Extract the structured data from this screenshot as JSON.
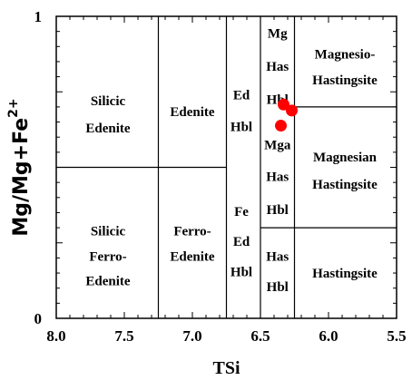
{
  "chart_data": {
    "type": "scatter",
    "title": "",
    "xlabel": "TSi",
    "ylabel": "Mg/Mg+Fe",
    "ylabel_sup": "2+",
    "xlim": [
      8.0,
      5.5
    ],
    "ylim": [
      0,
      1
    ],
    "x_reversed": true,
    "x_ticks": [
      "8.0",
      "7.5",
      "7.0",
      "6.5",
      "6.0",
      "5.5"
    ],
    "y_ticks": [
      "0",
      "1"
    ],
    "grid": false,
    "marker_color": "#ff0000",
    "divider_x": [
      7.25,
      6.75,
      6.5,
      6.25
    ],
    "divider_y": 0.5,
    "regions": [
      {
        "lines": [
          "Silicic",
          "Edenite"
        ],
        "x": 7.62,
        "y": [
          0.72,
          0.63
        ]
      },
      {
        "lines": [
          "Edenite"
        ],
        "x": 7.0,
        "y": [
          0.685
        ]
      },
      {
        "lines": [
          "Ed",
          "Hbl"
        ],
        "x": 6.64,
        "y": [
          0.74,
          0.635
        ]
      },
      {
        "lines": [
          "Mg",
          "Has",
          "Hbl"
        ],
        "x": 6.375,
        "y": [
          0.945,
          0.835,
          0.725
        ]
      },
      {
        "lines": [
          "Magnesio-",
          "Hastingsite"
        ],
        "x": 5.88,
        "y": [
          0.875,
          0.79
        ]
      },
      {
        "lines": [
          "Mga",
          "Has",
          "Hbl"
        ],
        "x": 6.375,
        "y": [
          0.575,
          0.47,
          0.36
        ]
      },
      {
        "lines": [
          "Magnesian",
          "Hastingsite"
        ],
        "x": 5.88,
        "y": [
          0.535,
          0.445
        ]
      },
      {
        "lines": [
          "Silicic",
          "Ferro-",
          "Edenite"
        ],
        "x": 7.62,
        "y": [
          0.29,
          0.205,
          0.125
        ]
      },
      {
        "lines": [
          "Ferro-",
          "Edenite"
        ],
        "x": 7.0,
        "y": [
          0.29,
          0.205
        ]
      },
      {
        "lines": [
          "Fe",
          "Ed",
          "Hbl"
        ],
        "x": 6.64,
        "y": [
          0.355,
          0.255,
          0.155
        ]
      },
      {
        "lines": [
          "Has",
          "Hbl"
        ],
        "x": 6.375,
        "y": [
          0.205,
          0.105
        ]
      },
      {
        "lines": [
          "Hastingsite"
        ],
        "x": 5.88,
        "y": [
          0.15
        ]
      }
    ],
    "points": [
      {
        "x": 6.33,
        "y": 0.708
      },
      {
        "x": 6.27,
        "y": 0.688
      },
      {
        "x": 6.35,
        "y": 0.638
      }
    ]
  }
}
